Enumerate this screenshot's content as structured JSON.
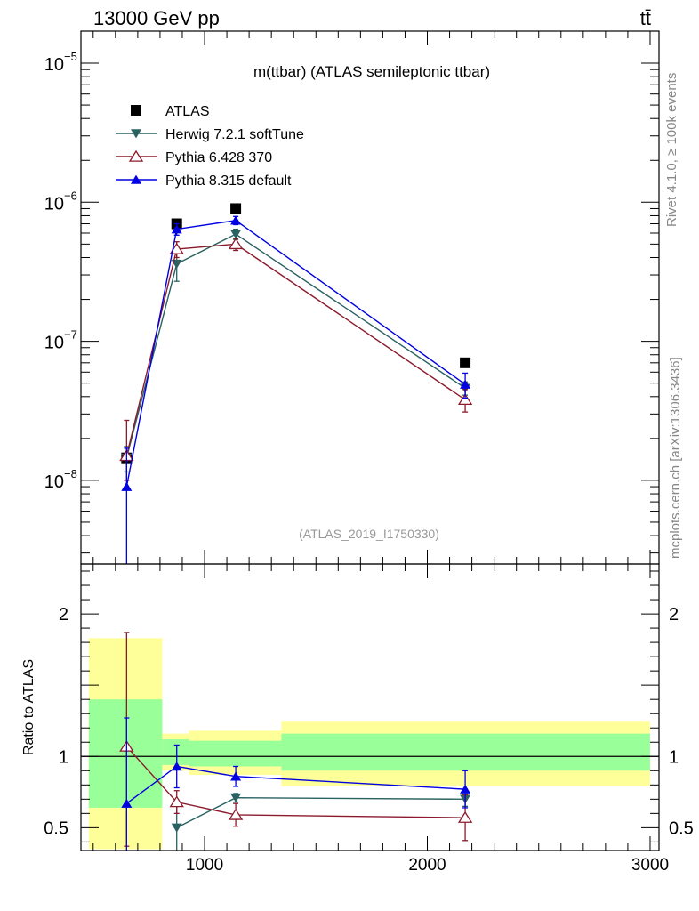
{
  "header": {
    "energy_label": "13000 GeV pp",
    "process_label": "tt̄"
  },
  "side_labels": {
    "rivet": "Rivet 4.1.0, ≥ 100k events",
    "mcplots": "mcplots.cern.ch [arXiv:1306.3436]"
  },
  "chart_data": {
    "type": "scatter",
    "title": "m(ttbar) (ATLAS semileptonic ttbar)",
    "watermark": "(ATLAS_2019_I1750330)",
    "xlabel": "",
    "xlim": [
      445,
      3040
    ],
    "x_ticks": [
      {
        "value": 1000,
        "label": "1000"
      },
      {
        "value": 2000,
        "label": "2000"
      },
      {
        "value": 3000,
        "label": "3000"
      }
    ],
    "main_panel": {
      "yscale": "log",
      "ylim": [
        2.5e-09,
        1.7e-05
      ],
      "y_ticks": [
        {
          "value": 1e-05,
          "base": "10",
          "exp": "−5"
        },
        {
          "value": 1e-06,
          "base": "10",
          "exp": "−6"
        },
        {
          "value": 1e-07,
          "base": "10",
          "exp": "−7"
        },
        {
          "value": 1e-08,
          "base": "10",
          "exp": "−8"
        }
      ],
      "series": [
        {
          "name": "ATLAS",
          "color": "#000000",
          "marker": "square",
          "x": [
            650,
            875,
            1140,
            2170
          ],
          "y": [
            1.45e-08,
            7e-07,
            9e-07,
            7e-08
          ],
          "err_lo": [
            0,
            0,
            0,
            0
          ],
          "err_hi": [
            0,
            0,
            0,
            0
          ],
          "line": false
        },
        {
          "name": "Herwig 7.2.1 softTune",
          "color": "#2a6262",
          "marker": "triangle-down",
          "x": [
            650,
            875,
            1140,
            2170
          ],
          "y": [
            1.45e-08,
            3.6e-07,
            5.9e-07,
            4.6e-08
          ],
          "err_lo": [
            3e-09,
            9e-08,
            5e-08,
            5e-09
          ],
          "err_hi": [
            3e-09,
            9e-08,
            5e-08,
            5e-09
          ],
          "line": true
        },
        {
          "name": "Pythia 6.428 370",
          "color": "#8b1a2b",
          "marker": "triangle-up-open",
          "x": [
            650,
            875,
            1140,
            2170
          ],
          "y": [
            1.5e-08,
            4.6e-07,
            5e-07,
            3.8e-08
          ],
          "err_lo": [
            5e-09,
            6e-08,
            5e-08,
            7e-09
          ],
          "err_hi": [
            1.2e-08,
            6e-08,
            5e-08,
            7e-09
          ],
          "line": true
        },
        {
          "name": "Pythia 8.315 default",
          "color": "#0000e0",
          "marker": "triangle-up",
          "x": [
            650,
            875,
            1140,
            2170
          ],
          "y": [
            9e-09,
            6.4e-07,
            7.4e-07,
            4.9e-08
          ],
          "err_lo": [
            8e-09,
            6e-08,
            5e-08,
            1e-08
          ],
          "err_hi": [
            8e-09,
            6e-08,
            5e-08,
            1e-08
          ],
          "line": true
        }
      ]
    },
    "ratio_panel": {
      "ylabel": "Ratio to ATLAS",
      "ylim": [
        0.34,
        2.35
      ],
      "y_ticks": [
        {
          "value": 0.5,
          "label": "0.5"
        },
        {
          "value": 1,
          "label": "1"
        },
        {
          "value": 2,
          "label": "2"
        }
      ],
      "bands": [
        {
          "x0": 480,
          "x1": 810,
          "yellow": [
            0.35,
            1.83
          ],
          "green": [
            0.64,
            1.4
          ]
        },
        {
          "x0": 810,
          "x1": 930,
          "yellow": [
            0.9,
            1.16
          ],
          "green": [
            0.94,
            1.12
          ]
        },
        {
          "x0": 930,
          "x1": 1345,
          "yellow": [
            0.87,
            1.18
          ],
          "green": [
            0.93,
            1.11
          ]
        },
        {
          "x0": 1345,
          "x1": 3000,
          "yellow": [
            0.79,
            1.25
          ],
          "green": [
            0.9,
            1.16
          ]
        }
      ],
      "series": [
        {
          "name": "Herwig 7.2.1 softTune",
          "color": "#2a6262",
          "marker": "triangle-down",
          "x": [
            875,
            1140,
            2170
          ],
          "y": [
            0.5,
            0.71,
            0.7
          ],
          "err_lo": [
            0.16,
            0.03,
            0.05
          ],
          "err_hi": [
            0.16,
            0.03,
            0.05
          ]
        },
        {
          "name": "Pythia 6.428 370",
          "color": "#8b1a2b",
          "marker": "triangle-up-open",
          "x": [
            650,
            875,
            1140,
            2170
          ],
          "y": [
            1.07,
            0.68,
            0.59,
            0.57
          ],
          "err_lo": [
            0.7,
            0.08,
            0.08,
            0.16
          ],
          "err_hi": [
            0.8,
            0.08,
            0.08,
            0.16
          ]
        },
        {
          "name": "Pythia 8.315 default",
          "color": "#0000e0",
          "marker": "triangle-up",
          "x": [
            650,
            875,
            1140,
            2170
          ],
          "y": [
            0.67,
            0.93,
            0.86,
            0.77
          ],
          "err_lo": [
            0.6,
            0.15,
            0.07,
            0.13
          ],
          "err_hi": [
            0.6,
            0.15,
            0.07,
            0.13
          ]
        }
      ]
    }
  }
}
